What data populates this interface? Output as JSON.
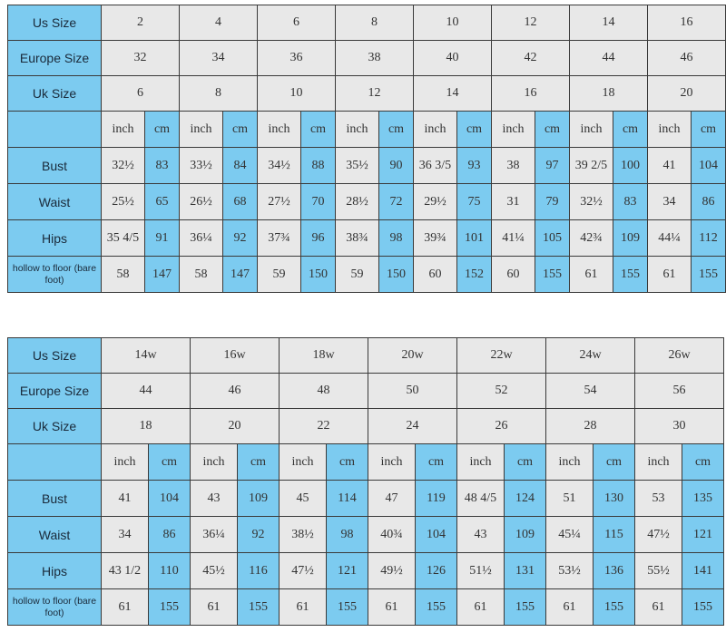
{
  "colors": {
    "blue": "#7ccbf0",
    "gray": "#e8e8e8"
  },
  "tables": [
    {
      "us_label": "Us Size",
      "eu_label": "Europe Size",
      "uk_label": "Uk Size",
      "us": [
        "2",
        "4",
        "6",
        "8",
        "10",
        "12",
        "14",
        "16"
      ],
      "eu": [
        "32",
        "34",
        "36",
        "38",
        "40",
        "42",
        "44",
        "46"
      ],
      "uk": [
        "6",
        "8",
        "10",
        "12",
        "14",
        "16",
        "18",
        "20"
      ],
      "unit_inch": "inch",
      "unit_cm": "cm",
      "rows": [
        {
          "label": "Bust",
          "values": [
            "32½",
            "83",
            "33½",
            "84",
            "34½",
            "88",
            "35½",
            "90",
            "36 3/5",
            "93",
            "38",
            "97",
            "39 2/5",
            "100",
            "41",
            "104"
          ]
        },
        {
          "label": "Waist",
          "values": [
            "25½",
            "65",
            "26½",
            "68",
            "27½",
            "70",
            "28½",
            "72",
            "29½",
            "75",
            "31",
            "79",
            "32½",
            "83",
            "34",
            "86"
          ]
        },
        {
          "label": "Hips",
          "values": [
            "35 4/5",
            "91",
            "36¼",
            "92",
            "37¾",
            "96",
            "38¾",
            "98",
            "39¾",
            "101",
            "41¼",
            "105",
            "42¾",
            "109",
            "44¼",
            "112"
          ]
        },
        {
          "label": "hollow to floor (bare foot)",
          "values": [
            "58",
            "147",
            "58",
            "147",
            "59",
            "150",
            "59",
            "150",
            "60",
            "152",
            "60",
            "155",
            "61",
            "155",
            "61",
            "155"
          ]
        }
      ]
    },
    {
      "us_label": "Us Size",
      "eu_label": "Europe Size",
      "uk_label": "Uk Size",
      "us": [
        "14w",
        "16w",
        "18w",
        "20w",
        "22w",
        "24w",
        "26w"
      ],
      "eu": [
        "44",
        "46",
        "48",
        "50",
        "52",
        "54",
        "56"
      ],
      "uk": [
        "18",
        "20",
        "22",
        "24",
        "26",
        "28",
        "30"
      ],
      "unit_inch": "inch",
      "unit_cm": "cm",
      "rows": [
        {
          "label": "Bust",
          "values": [
            "41",
            "104",
            "43",
            "109",
            "45",
            "114",
            "47",
            "119",
            "48 4/5",
            "124",
            "51",
            "130",
            "53",
            "135"
          ]
        },
        {
          "label": "Waist",
          "values": [
            "34",
            "86",
            "36¼",
            "92",
            "38½",
            "98",
            "40¾",
            "104",
            "43",
            "109",
            "45¼",
            "115",
            "47½",
            "121"
          ]
        },
        {
          "label": "Hips",
          "values": [
            "43 1/2",
            "110",
            "45½",
            "116",
            "47½",
            "121",
            "49½",
            "126",
            "51½",
            "131",
            "53½",
            "136",
            "55½",
            "141"
          ]
        },
        {
          "label": "hollow to floor (bare foot)",
          "values": [
            "61",
            "155",
            "61",
            "155",
            "61",
            "155",
            "61",
            "155",
            "61",
            "155",
            "61",
            "155",
            "61",
            "155"
          ]
        }
      ]
    }
  ]
}
